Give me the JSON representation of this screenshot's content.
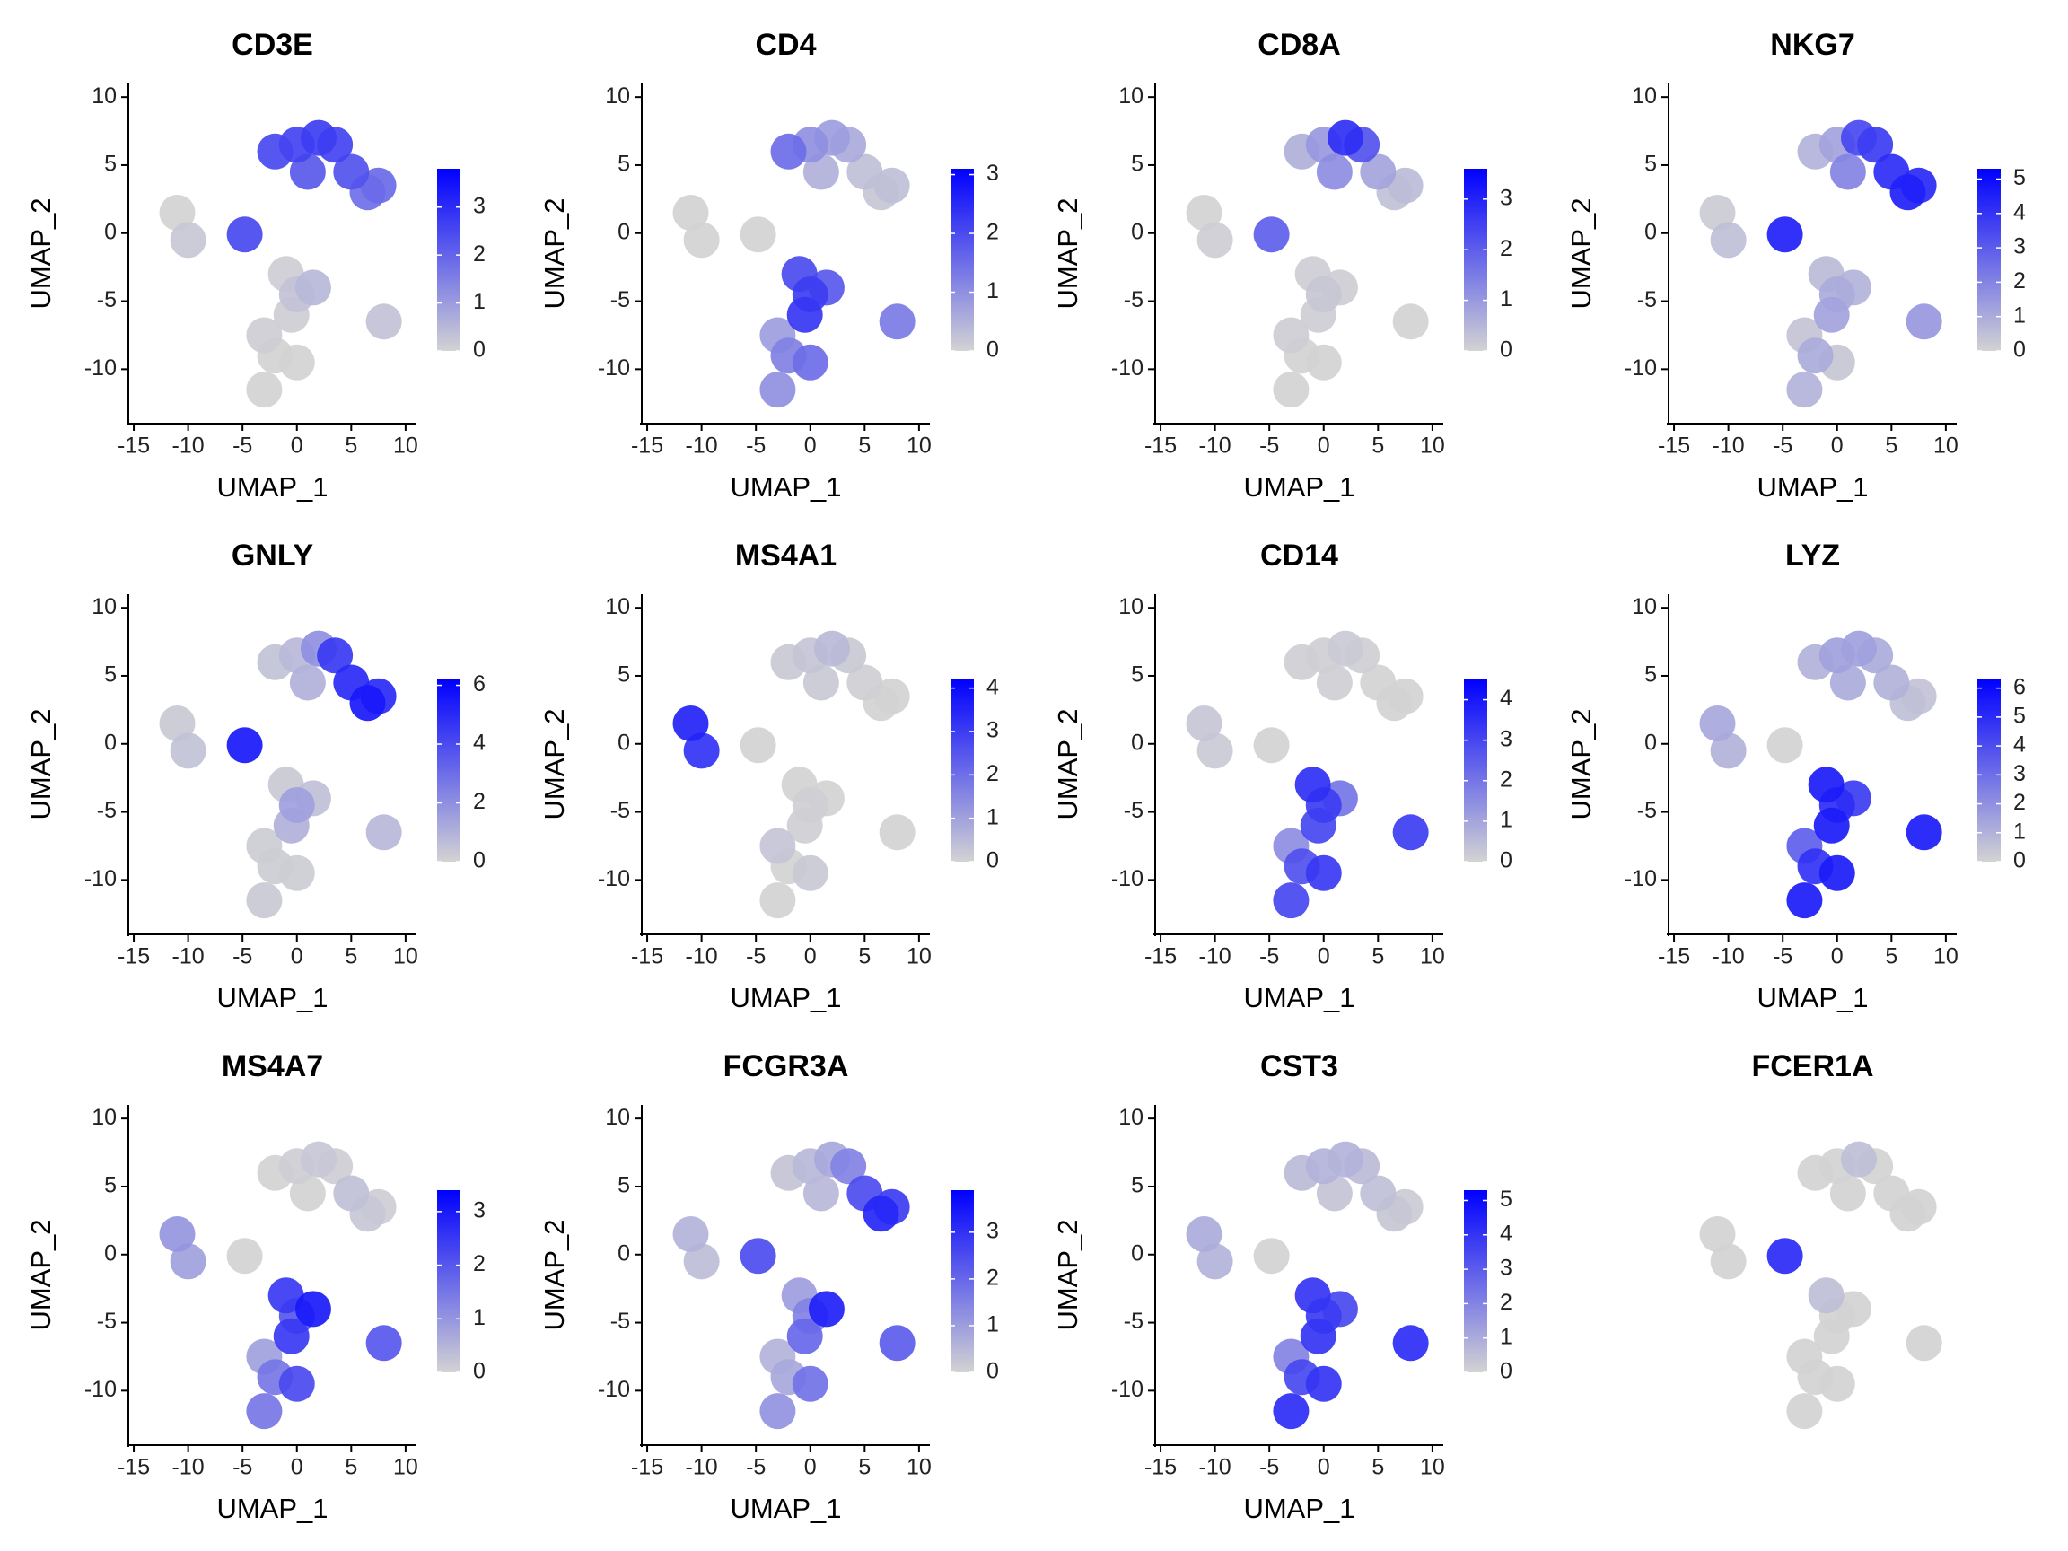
{
  "chart_data": [
    {
      "type": "scatter",
      "title": "CD3E",
      "x_label": "UMAP_1",
      "y_label": "UMAP_2",
      "xlim": [
        -15.5,
        11
      ],
      "ylim": [
        -14,
        11
      ],
      "xticks": [
        -15,
        -10,
        -5,
        0,
        5,
        10
      ],
      "yticks": [
        -10,
        -5,
        0,
        5,
        10
      ],
      "colors": [
        "#d3d3d3",
        "#0000ff"
      ],
      "x": [
        -2,
        0,
        2,
        3.5,
        5,
        6.5,
        1,
        -11,
        -10,
        -4.8,
        -1,
        0,
        1.5,
        -0.5,
        0,
        -3,
        -2,
        8,
        -3,
        7.5
      ],
      "y": [
        6,
        6.5,
        7,
        6.5,
        4.5,
        3,
        4.5,
        1.5,
        -0.5,
        -0.1,
        -3,
        -4.5,
        -4,
        -6,
        -9.5,
        -11.5,
        -9,
        -6.5,
        -7.5,
        3.5
      ],
      "values": [
        2.5,
        2.6,
        2.7,
        2.6,
        2.3,
        1.8,
        2.2,
        0,
        0.2,
        2.5,
        0.1,
        0.3,
        0.5,
        0.1,
        0,
        0,
        0,
        0.3,
        0.1,
        1.9
      ],
      "colorbar": {
        "lim": [
          0,
          3.8
        ],
        "ticks": [
          0,
          1,
          2,
          3
        ]
      }
    },
    {
      "type": "scatter",
      "title": "CD4",
      "x_label": "UMAP_1",
      "y_label": "UMAP_2",
      "xlim": [
        -15.5,
        11
      ],
      "ylim": [
        -14,
        11
      ],
      "xticks": [
        -15,
        -10,
        -5,
        0,
        5,
        10
      ],
      "yticks": [
        -10,
        -5,
        0,
        5,
        10
      ],
      "colors": [
        "#d3d3d3",
        "#0000ff"
      ],
      "x": [
        -2,
        0,
        2,
        3.5,
        5,
        6.5,
        1,
        -11,
        -10,
        -4.8,
        -1,
        0,
        1.5,
        -0.5,
        0,
        -3,
        -2,
        8,
        -3,
        7.5
      ],
      "y": [
        6,
        6.5,
        7,
        6.5,
        4.5,
        3,
        4.5,
        1.5,
        -0.5,
        -0.1,
        -3,
        -4.5,
        -4,
        -6,
        -9.5,
        -11.5,
        -9,
        -6.5,
        -7.5,
        3.5
      ],
      "values": [
        1.5,
        1,
        0.8,
        0.6,
        0.3,
        0.2,
        0.5,
        0,
        0,
        0,
        2,
        2.2,
        1.8,
        2.3,
        1.5,
        1,
        1.2,
        1.3,
        0.8,
        0.3
      ],
      "colorbar": {
        "lim": [
          0,
          3.1
        ],
        "ticks": [
          0,
          1,
          2,
          3
        ]
      }
    },
    {
      "type": "scatter",
      "title": "CD8A",
      "x_label": "UMAP_1",
      "y_label": "UMAP_2",
      "xlim": [
        -15.5,
        11
      ],
      "ylim": [
        -14,
        11
      ],
      "xticks": [
        -15,
        -10,
        -5,
        0,
        5,
        10
      ],
      "yticks": [
        -10,
        -5,
        0,
        5,
        10
      ],
      "colors": [
        "#d3d3d3",
        "#0000ff"
      ],
      "x": [
        -2,
        0,
        2,
        3.5,
        5,
        6.5,
        1,
        -11,
        -10,
        -4.8,
        -1,
        0,
        1.5,
        -0.5,
        0,
        -3,
        -2,
        8,
        -3,
        7.5
      ],
      "y": [
        6,
        6.5,
        7,
        6.5,
        4.5,
        3,
        4.5,
        1.5,
        -0.5,
        -0.1,
        -3,
        -4.5,
        -4,
        -6,
        -9.5,
        -11.5,
        -9,
        -6.5,
        -7.5,
        3.5
      ],
      "values": [
        0.6,
        1,
        2.8,
        2.2,
        0.8,
        0.3,
        1.2,
        0,
        0.1,
        2,
        0.1,
        0.2,
        0.1,
        0.1,
        0,
        0,
        0,
        0,
        0.1,
        0.4
      ],
      "colorbar": {
        "lim": [
          0,
          3.6
        ],
        "ticks": [
          0,
          1,
          2,
          3
        ]
      }
    },
    {
      "type": "scatter",
      "title": "NKG7",
      "x_label": "UMAP_1",
      "y_label": "UMAP_2",
      "xlim": [
        -15.5,
        11
      ],
      "ylim": [
        -14,
        11
      ],
      "xticks": [
        -15,
        -10,
        -5,
        0,
        5,
        10
      ],
      "yticks": [
        -10,
        -5,
        0,
        5,
        10
      ],
      "colors": [
        "#d3d3d3",
        "#0000ff"
      ],
      "x": [
        -2,
        0,
        2,
        3.5,
        5,
        6.5,
        1,
        -11,
        -10,
        -4.8,
        -1,
        0,
        1.5,
        -0.5,
        0,
        -3,
        -2,
        8,
        -3,
        7.5
      ],
      "y": [
        6,
        6.5,
        7,
        6.5,
        4.5,
        3,
        4.5,
        1.5,
        -0.5,
        -0.1,
        -3,
        -4.5,
        -4,
        -6,
        -9.5,
        -11.5,
        -9,
        -6.5,
        -7.5,
        3.5
      ],
      "values": [
        0.8,
        1.2,
        3.5,
        3.8,
        4.2,
        4.5,
        2,
        0.2,
        0.5,
        4.5,
        0.6,
        1,
        0.8,
        1.2,
        0.3,
        0.8,
        1,
        1.5,
        0.4,
        4.3
      ],
      "colorbar": {
        "lim": [
          0,
          5.3
        ],
        "ticks": [
          0,
          1,
          2,
          3,
          4,
          5
        ]
      }
    },
    {
      "type": "scatter",
      "title": "GNLY",
      "x_label": "UMAP_1",
      "y_label": "UMAP_2",
      "xlim": [
        -15.5,
        11
      ],
      "ylim": [
        -14,
        11
      ],
      "xticks": [
        -15,
        -10,
        -5,
        0,
        5,
        10
      ],
      "yticks": [
        -10,
        -5,
        0,
        5,
        10
      ],
      "colors": [
        "#d3d3d3",
        "#0000ff"
      ],
      "x": [
        -2,
        0,
        2,
        3.5,
        5,
        6.5,
        1,
        -11,
        -10,
        -4.8,
        -1,
        0,
        1.5,
        -0.5,
        0,
        -3,
        -2,
        8,
        -3,
        7.5
      ],
      "y": [
        6,
        6.5,
        7,
        6.5,
        4.5,
        3,
        4.5,
        1.5,
        -0.5,
        -0.1,
        -3,
        -4.5,
        -4,
        -6,
        -9.5,
        -11.5,
        -9,
        -6.5,
        -7.5,
        3.5
      ],
      "values": [
        0.5,
        0.8,
        2,
        4.5,
        5,
        5.5,
        1,
        0.3,
        0.5,
        5.5,
        0.3,
        1.5,
        0.6,
        1,
        0.2,
        0.3,
        0.2,
        0.8,
        0.2,
        5
      ],
      "colorbar": {
        "lim": [
          0,
          6.2
        ],
        "ticks": [
          0,
          2,
          4,
          6
        ]
      }
    },
    {
      "type": "scatter",
      "title": "MS4A1",
      "x_label": "UMAP_1",
      "y_label": "UMAP_2",
      "xlim": [
        -15.5,
        11
      ],
      "ylim": [
        -14,
        11
      ],
      "xticks": [
        -15,
        -10,
        -5,
        0,
        5,
        10
      ],
      "yticks": [
        -10,
        -5,
        0,
        5,
        10
      ],
      "colors": [
        "#d3d3d3",
        "#0000ff"
      ],
      "x": [
        -2,
        0,
        2,
        3.5,
        5,
        6.5,
        1,
        -11,
        -10,
        -4.8,
        -1,
        0,
        1.5,
        -0.5,
        0,
        -3,
        -2,
        8,
        -3,
        7.5
      ],
      "y": [
        6,
        6.5,
        7,
        6.5,
        4.5,
        3,
        4.5,
        1.5,
        -0.5,
        -0.1,
        -3,
        -4.5,
        -4,
        -6,
        -9.5,
        -11.5,
        -9,
        -6.5,
        -7.5,
        3.5
      ],
      "values": [
        0.2,
        0.3,
        0.5,
        0.2,
        0.1,
        0,
        0.2,
        3.5,
        3.2,
        0,
        0,
        0.1,
        0,
        0.1,
        0.2,
        0,
        0,
        0,
        0.3,
        0
      ],
      "colorbar": {
        "lim": [
          0,
          4.2
        ],
        "ticks": [
          0,
          1,
          2,
          3,
          4
        ]
      }
    },
    {
      "type": "scatter",
      "title": "CD14",
      "x_label": "UMAP_1",
      "y_label": "UMAP_2",
      "xlim": [
        -15.5,
        11
      ],
      "ylim": [
        -14,
        11
      ],
      "xticks": [
        -15,
        -10,
        -5,
        0,
        5,
        10
      ],
      "yticks": [
        -10,
        -5,
        0,
        5,
        10
      ],
      "colors": [
        "#d3d3d3",
        "#0000ff"
      ],
      "x": [
        -2,
        0,
        2,
        3.5,
        5,
        6.5,
        1,
        -11,
        -10,
        -4.8,
        -1,
        0,
        1.5,
        -0.5,
        0,
        -3,
        -2,
        8,
        -3,
        7.5
      ],
      "y": [
        6,
        6.5,
        7,
        6.5,
        4.5,
        3,
        4.5,
        1.5,
        -0.5,
        -0.1,
        -3,
        -4.5,
        -4,
        -6,
        -9.5,
        -11.5,
        -9,
        -6.5,
        -7.5,
        3.5
      ],
      "values": [
        0.1,
        0.1,
        0.2,
        0.1,
        0,
        0,
        0.1,
        0.3,
        0.2,
        0,
        3.5,
        3.2,
        2,
        3,
        3.3,
        3,
        2.8,
        3.2,
        1.5,
        0
      ],
      "colorbar": {
        "lim": [
          0,
          4.5
        ],
        "ticks": [
          0,
          1,
          2,
          3,
          4
        ]
      }
    },
    {
      "type": "scatter",
      "title": "LYZ",
      "x_label": "UMAP_1",
      "y_label": "UMAP_2",
      "xlim": [
        -15.5,
        11
      ],
      "ylim": [
        -14,
        11
      ],
      "xticks": [
        -15,
        -10,
        -5,
        0,
        5,
        10
      ],
      "yticks": [
        -10,
        -5,
        0,
        5,
        10
      ],
      "colors": [
        "#d3d3d3",
        "#0000ff"
      ],
      "x": [
        -2,
        0,
        2,
        3.5,
        5,
        6.5,
        1,
        -11,
        -10,
        -4.8,
        -1,
        0,
        1.5,
        -0.5,
        0,
        -3,
        -2,
        8,
        -3,
        7.5
      ],
      "y": [
        6,
        6.5,
        7,
        6.5,
        4.5,
        3,
        4.5,
        1.5,
        -0.5,
        -0.1,
        -3,
        -4.5,
        -4,
        -6,
        -9.5,
        -11.5,
        -9,
        -6.5,
        -7.5,
        3.5
      ],
      "values": [
        1,
        1.5,
        1.5,
        1.2,
        1,
        0.6,
        1.2,
        1.3,
        1,
        0,
        5.5,
        5,
        4.5,
        5.5,
        5.5,
        5.5,
        4.8,
        5.5,
        3.5,
        0.5
      ],
      "colorbar": {
        "lim": [
          0,
          6.3
        ],
        "ticks": [
          0,
          1,
          2,
          3,
          4,
          5,
          6
        ]
      }
    },
    {
      "type": "scatter",
      "title": "MS4A7",
      "x_label": "UMAP_1",
      "y_label": "UMAP_2",
      "xlim": [
        -15.5,
        11
      ],
      "ylim": [
        -14,
        11
      ],
      "xticks": [
        -15,
        -10,
        -5,
        0,
        5,
        10
      ],
      "yticks": [
        -10,
        -5,
        0,
        5,
        10
      ],
      "colors": [
        "#d3d3d3",
        "#0000ff"
      ],
      "x": [
        -2,
        0,
        2,
        3.5,
        5,
        6.5,
        1,
        -11,
        -10,
        -4.8,
        -1,
        0,
        1.5,
        -0.5,
        0,
        -3,
        -2,
        8,
        -3,
        7.5
      ],
      "y": [
        6,
        6.5,
        7,
        6.5,
        4.5,
        3,
        4.5,
        1.5,
        -0.5,
        -0.1,
        -3,
        -4.5,
        -4,
        -6,
        -9.5,
        -11.5,
        -9,
        -6.5,
        -7.5,
        3.5
      ],
      "values": [
        0,
        0.1,
        0.2,
        0.1,
        0.3,
        0.2,
        0,
        1,
        0.8,
        0,
        2.5,
        2,
        3,
        2.5,
        2.2,
        1.5,
        1.5,
        2,
        0.8,
        0.1
      ],
      "colorbar": {
        "lim": [
          0,
          3.4
        ],
        "ticks": [
          0,
          1,
          2,
          3
        ]
      }
    },
    {
      "type": "scatter",
      "title": "FCGR3A",
      "x_label": "UMAP_1",
      "y_label": "UMAP_2",
      "xlim": [
        -15.5,
        11
      ],
      "ylim": [
        -14,
        11
      ],
      "xticks": [
        -15,
        -10,
        -5,
        0,
        5,
        10
      ],
      "yticks": [
        -10,
        -5,
        0,
        5,
        10
      ],
      "colors": [
        "#d3d3d3",
        "#0000ff"
      ],
      "x": [
        -2,
        0,
        2,
        3.5,
        5,
        6.5,
        1,
        -11,
        -10,
        -4.8,
        -1,
        0,
        1.5,
        -0.5,
        0,
        -3,
        -2,
        8,
        -3,
        7.5
      ],
      "y": [
        6,
        6.5,
        7,
        6.5,
        4.5,
        3,
        4.5,
        1.5,
        -0.5,
        -0.1,
        -3,
        -4.5,
        -4,
        -6,
        -9.5,
        -11.5,
        -9,
        -6.5,
        -7.5,
        3.5
      ],
      "values": [
        0.3,
        0.5,
        0.8,
        1.5,
        2.5,
        3.2,
        0.5,
        0.6,
        0.4,
        2.5,
        1,
        1.5,
        3.3,
        2,
        1.8,
        1.2,
        0.8,
        2.2,
        0.6,
        2.8
      ],
      "colorbar": {
        "lim": [
          0,
          3.9
        ],
        "ticks": [
          0,
          1,
          2,
          3
        ]
      }
    },
    {
      "type": "scatter",
      "title": "CST3",
      "x_label": "UMAP_1",
      "y_label": "UMAP_2",
      "xlim": [
        -15.5,
        11
      ],
      "ylim": [
        -14,
        11
      ],
      "xticks": [
        -15,
        -10,
        -5,
        0,
        5,
        10
      ],
      "yticks": [
        -10,
        -5,
        0,
        5,
        10
      ],
      "colors": [
        "#d3d3d3",
        "#0000ff"
      ],
      "x": [
        -2,
        0,
        2,
        3.5,
        5,
        6.5,
        1,
        -11,
        -10,
        -4.8,
        -1,
        0,
        1.5,
        -0.5,
        0,
        -3,
        -2,
        8,
        -3,
        7.5
      ],
      "y": [
        6,
        6.5,
        7,
        6.5,
        4.5,
        3,
        4.5,
        1.5,
        -0.5,
        -0.1,
        -3,
        -4.5,
        -4,
        -6,
        -9.5,
        -11.5,
        -9,
        -6.5,
        -7.5,
        3.5
      ],
      "values": [
        0.6,
        0.8,
        0.8,
        0.6,
        0.5,
        0.3,
        0.4,
        1,
        0.8,
        0,
        4,
        3.8,
        3.5,
        4,
        4,
        4.2,
        3.5,
        4.2,
        2,
        0.2
      ],
      "colorbar": {
        "lim": [
          0,
          5.3
        ],
        "ticks": [
          0,
          1,
          2,
          3,
          4,
          5
        ]
      }
    },
    {
      "type": "scatter",
      "title": "FCER1A",
      "xlim": [
        -15.5,
        11
      ],
      "ylim": [
        -14,
        11
      ],
      "colors": [
        "#d3d3d3",
        "#0000ff"
      ],
      "x": [
        -2,
        0,
        2,
        3.5,
        5,
        6.5,
        1,
        -11,
        -10,
        -4.8,
        -1,
        0,
        1.5,
        -0.5,
        0,
        -3,
        -2,
        8,
        -3,
        7.5
      ],
      "y": [
        6,
        6.5,
        7,
        6.5,
        4.5,
        3,
        4.5,
        1.5,
        -0.5,
        -0.1,
        -3,
        -4.5,
        -4,
        -6,
        -9.5,
        -11.5,
        -9,
        -6.5,
        -7.5,
        3.5
      ],
      "values": [
        0,
        0,
        0.1,
        0,
        0,
        0,
        0,
        0,
        0,
        0.8,
        0.1,
        0,
        0,
        0,
        0,
        0,
        0,
        0,
        0,
        0
      ]
    }
  ]
}
